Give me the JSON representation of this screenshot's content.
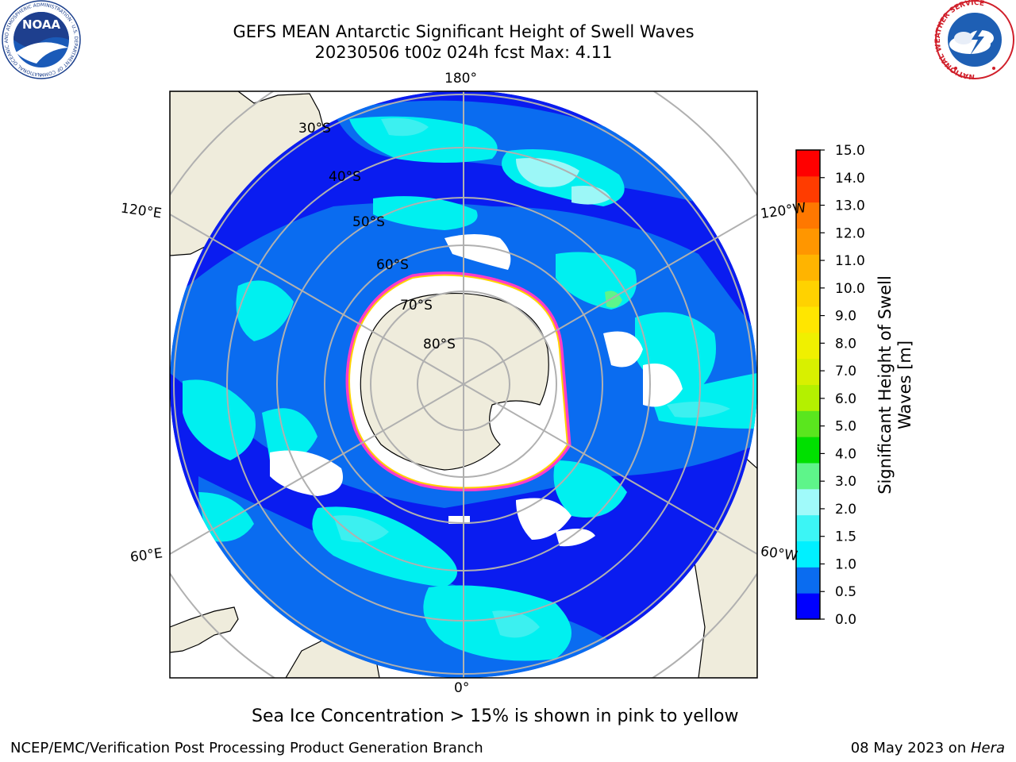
{
  "title": {
    "line1": "GEFS MEAN Antarctic Significant Height of Swell Waves",
    "line2": "20230506 t00z 024h fcst   Max: 4.11"
  },
  "map": {
    "projection": "south polar stereographic",
    "longitude_labels": {
      "top": "180°",
      "bottom": "0°",
      "upper_left": "120°E",
      "upper_right": "120°W",
      "lower_left": "60°E",
      "lower_right": "60°W"
    },
    "latitude_labels": [
      "30°S",
      "40°S",
      "50°S",
      "60°S",
      "70°S",
      "80°S"
    ],
    "colors": {
      "land": "#efecdc",
      "ocean_base": "#0a1cf0",
      "swell_1_0": "#0a6cf0",
      "swell_1_5": "#00f0f0",
      "swell_2_0": "#3cf0f0",
      "swell_2_5": "#9cf7f7",
      "sea_ice_edge": "#ff3cc8",
      "ice": "#ffffff",
      "graticule": "#b0b0b0"
    }
  },
  "colorbar": {
    "label": "Significant Height of Swell Waves [m]",
    "label_line1": "Significant Height of Swell",
    "label_line2": "Waves [m]",
    "ticks": [
      "15.0",
      "14.0",
      "13.0",
      "12.0",
      "11.0",
      "10.0",
      "9.0",
      "8.0",
      "7.0",
      "6.0",
      "5.0",
      "4.0",
      "3.0",
      "2.0",
      "1.5",
      "1.0",
      "0.5",
      "0.0"
    ],
    "bounds": [
      0.0,
      0.5,
      1.0,
      1.5,
      2.0,
      2.5,
      3.0,
      4.0,
      5.0,
      6.0,
      7.0,
      8.0,
      9.0,
      10.0,
      11.0,
      12.0,
      13.0,
      14.0,
      15.0
    ],
    "colors": [
      "#0000ff",
      "#0a6cf0",
      "#00f0ff",
      "#3cf5f5",
      "#a0fafa",
      "#5ef58a",
      "#00e000",
      "#5ae61e",
      "#b4f000",
      "#d8f000",
      "#f0f000",
      "#ffe600",
      "#ffd200",
      "#ffb400",
      "#ff9600",
      "#ff7800",
      "#ff3c00",
      "#ff0000"
    ]
  },
  "caption": "Sea Ice Concentration > 15% is shown in pink to yellow",
  "footer": {
    "left": "NCEP/EMC/Verification Post Processing Product Generation Branch",
    "right_prefix": "08 May 2023 on ",
    "right_host": "Hera"
  },
  "logos": {
    "noaa_text": "NOAA",
    "noaa_ring_text": "NATIONAL OCEANIC AND ATMOSPHERIC ADMINISTRATION · U.S. DEPARTMENT OF COMMERCE",
    "nws_ring_text": "NATIONAL WEATHER SERVICE"
  }
}
